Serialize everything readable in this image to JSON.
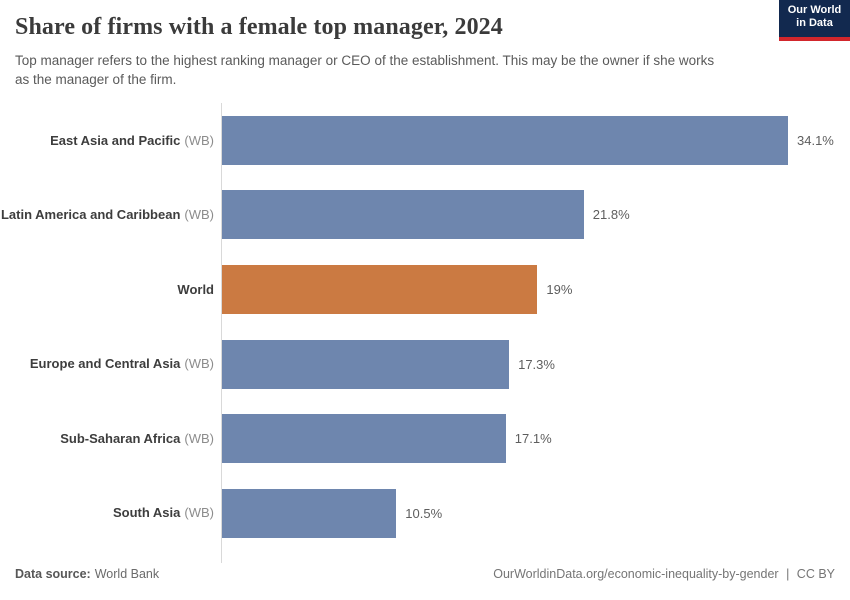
{
  "header": {
    "title": "Share of firms with a female top manager, 2024",
    "subtitle": "Top manager refers to the highest ranking manager or CEO of the establishment. This may be the owner if she works as the manager of the firm.",
    "logo": {
      "line1": "Our World",
      "line2": "in Data",
      "bg_color": "#12294f",
      "accent_color": "#d2262c"
    }
  },
  "chart_data": {
    "type": "bar",
    "orientation": "horizontal",
    "title": "Share of firms with a female top manager, 2024",
    "unit": "%",
    "xlim": [
      0,
      34.1
    ],
    "grid": false,
    "legend": false,
    "default_color": "#6e86ae",
    "highlight_color": "#cb7a42",
    "axis_color": "#d9d9d9",
    "categories": [
      "East Asia and Pacific (WB)",
      "Latin America and Caribbean (WB)",
      "World",
      "Europe and Central Asia (WB)",
      "Sub-Saharan Africa (WB)",
      "South Asia (WB)"
    ],
    "values": [
      34.1,
      21.8,
      19,
      17.3,
      17.1,
      10.5
    ],
    "bars": [
      {
        "label": "East Asia and Pacific",
        "suffix": "(WB)",
        "value": 34.1,
        "display": "34.1%",
        "color": "#6e86ae"
      },
      {
        "label": "Latin America and Caribbean",
        "suffix": "(WB)",
        "value": 21.8,
        "display": "21.8%",
        "color": "#6e86ae"
      },
      {
        "label": "World",
        "suffix": "",
        "value": 19,
        "display": "19%",
        "color": "#cb7a42"
      },
      {
        "label": "Europe and Central Asia",
        "suffix": "(WB)",
        "value": 17.3,
        "display": "17.3%",
        "color": "#6e86ae"
      },
      {
        "label": "Sub-Saharan Africa",
        "suffix": "(WB)",
        "value": 17.1,
        "display": "17.1%",
        "color": "#6e86ae"
      },
      {
        "label": "South Asia",
        "suffix": "(WB)",
        "value": 10.5,
        "display": "10.5%",
        "color": "#6e86ae"
      }
    ]
  },
  "footer": {
    "source_label": "Data source:",
    "source_value": "World Bank",
    "url_text": "OurWorldinData.org/economic-inequality-by-gender",
    "separator": "|",
    "license": "CC BY"
  }
}
